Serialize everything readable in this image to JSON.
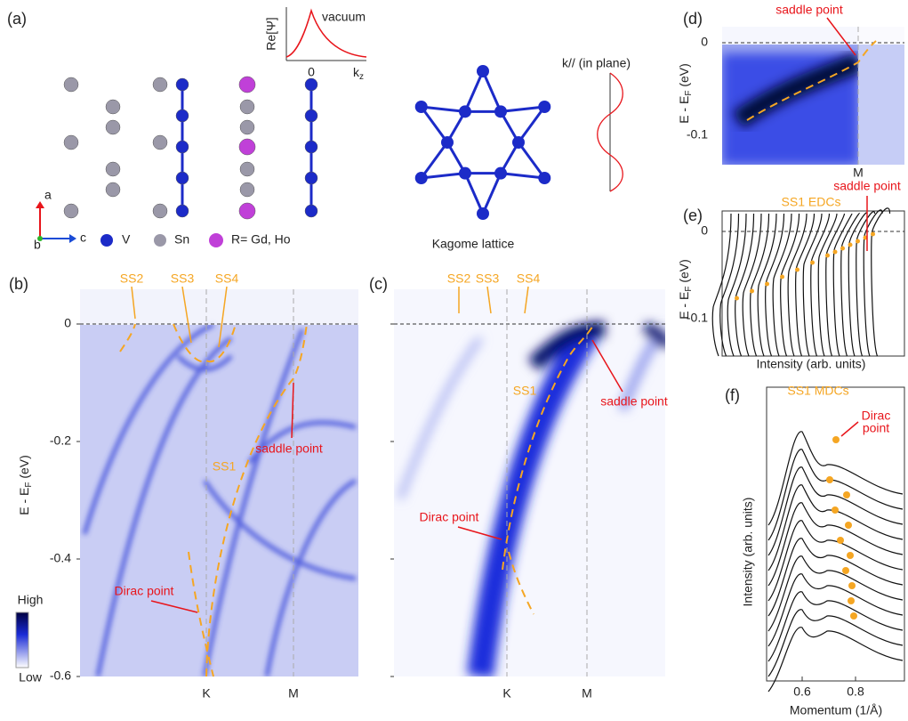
{
  "panels": {
    "a": {
      "label": "(a)",
      "inset": {
        "y_label": "Re[Ψ]",
        "annotation": "vacuum",
        "x_tick": "0",
        "x_label": "k",
        "x_label_sub": "z"
      },
      "axes": {
        "a": "a",
        "b": "b",
        "c": "c"
      },
      "legend": [
        "V",
        "Sn",
        "R= Gd, Ho"
      ],
      "kagome_title": "Kagome lattice",
      "wave_label": "k// (in plane)"
    },
    "b": {
      "label": "(b)",
      "y_label": {
        "main": "E - E",
        "sub": "F",
        "unit": " (eV)"
      },
      "yticks": [
        "0",
        "-0.2",
        "-0.4",
        "-0.6"
      ],
      "xticks": [
        "K",
        "M"
      ],
      "annotations": {
        "ss2": "SS2",
        "ss3": "SS3",
        "ss4": "SS4",
        "ss1": "SS1",
        "saddle": "saddle point",
        "dirac": "Dirac point"
      },
      "colorbar": [
        "High",
        "Low"
      ]
    },
    "c": {
      "label": "(c)",
      "xticks": [
        "K",
        "M"
      ],
      "annotations": {
        "ss2": "SS2",
        "ss3": "SS3",
        "ss4": "SS4",
        "ss1": "SS1",
        "saddle": "saddle point",
        "dirac": "Dirac point"
      }
    },
    "d": {
      "label": "(d)",
      "y_label": {
        "main": "E - E",
        "sub": "F",
        "unit": " (eV)"
      },
      "yticks": [
        "0",
        "-0.1"
      ],
      "xticks": [
        "M"
      ],
      "annotation": "saddle point"
    },
    "e": {
      "label": "(e)",
      "title": "SS1 EDCs",
      "annotation": "saddle point",
      "y_label": {
        "main": "E - E",
        "sub": "F",
        "unit": " (eV)"
      },
      "yticks": [
        "0",
        "-0.1"
      ],
      "x_label": "Intensity (arb. units)"
    },
    "f": {
      "label": "(f)",
      "title": "SS1 MDCs",
      "annotation": [
        "Dirac",
        "point"
      ],
      "y_label": "Intensity (arb. units)",
      "xticks": [
        "0.6",
        "0.8"
      ],
      "x_label": "Momentum (1/Å)"
    }
  }
}
